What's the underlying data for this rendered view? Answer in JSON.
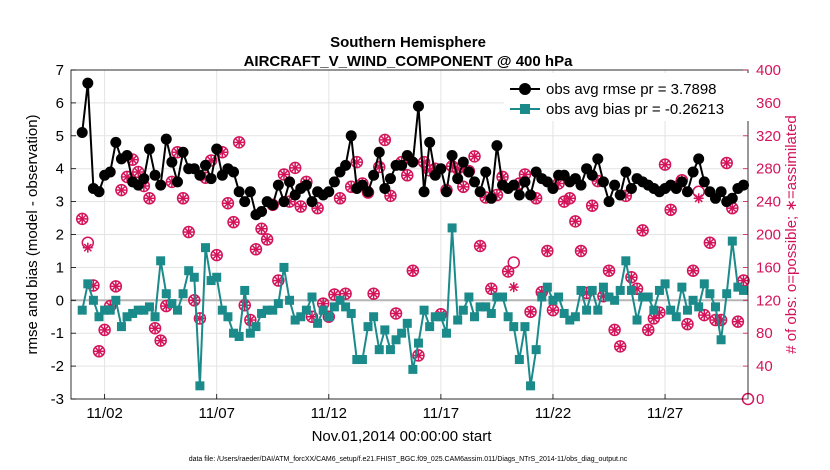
{
  "chart_data": {
    "type": "line",
    "title": "Southern Hemisphere",
    "subtitle": "AIRCRAFT_V_WIND_COMPONENT @ 400 hPa",
    "xlabel": "Nov.01,2014 00:00:00 start",
    "ylabel_left": "rmse and bias (model - observation)",
    "ylabel_right": "# of obs: o=possible; ∗=assimilated",
    "footnote": "data file: /Users/raeder/DAI/ATM_forcXX/CAM6_setup/f.e21.FHIST_BGC.f09_025.CAM6assim.011/Diags_NTrS_2014-11/obs_diag_output.nc",
    "xlim": [
      0.5,
      30.7
    ],
    "ylim_left": [
      -3,
      7
    ],
    "ylim_right": [
      0,
      400
    ],
    "x_ticks": [
      2,
      7,
      12,
      17,
      22,
      27
    ],
    "x_tick_labels": [
      "11/02",
      "11/07",
      "11/12",
      "11/17",
      "11/22",
      "11/27"
    ],
    "y_ticks_left": [
      -3,
      -2,
      -1,
      0,
      1,
      2,
      3,
      4,
      5,
      6,
      7
    ],
    "y_ticks_right": [
      0,
      40,
      80,
      120,
      160,
      200,
      240,
      280,
      320,
      360,
      400
    ],
    "grid": true,
    "legend_position": "top-right",
    "colors": {
      "rmse": "#000000",
      "bias": "#1b8a8a",
      "counts": "#d4145a",
      "zero_line": "#b5b5b5"
    },
    "x": [
      1,
      1.25,
      1.5,
      1.75,
      2,
      2.25,
      2.5,
      2.75,
      3,
      3.25,
      3.5,
      3.75,
      4,
      4.25,
      4.5,
      4.75,
      5,
      5.25,
      5.5,
      5.75,
      6,
      6.25,
      6.5,
      6.75,
      7,
      7.25,
      7.5,
      7.75,
      8,
      8.25,
      8.5,
      8.75,
      9,
      9.25,
      9.5,
      9.75,
      10,
      10.25,
      10.5,
      10.75,
      11,
      11.25,
      11.5,
      11.75,
      12,
      12.25,
      12.5,
      12.75,
      13,
      13.25,
      13.5,
      13.75,
      14,
      14.25,
      14.5,
      14.75,
      15,
      15.25,
      15.5,
      15.75,
      16,
      16.25,
      16.5,
      16.75,
      17,
      17.25,
      17.5,
      17.75,
      18,
      18.25,
      18.5,
      18.75,
      19,
      19.25,
      19.5,
      19.75,
      20,
      20.25,
      20.5,
      20.75,
      21,
      21.25,
      21.5,
      21.75,
      22,
      22.25,
      22.5,
      22.75,
      23,
      23.25,
      23.5,
      23.75,
      24,
      24.25,
      24.5,
      24.75,
      25,
      25.25,
      25.5,
      25.75,
      26,
      26.25,
      26.5,
      26.75,
      27,
      27.25,
      27.5,
      27.75,
      28,
      28.25,
      28.5,
      28.75,
      29,
      29.25,
      29.5,
      29.75,
      30,
      30.25,
      30.5
    ],
    "series": [
      {
        "name": "obs avg rmse pr = 3.7898",
        "axis": "left",
        "marker": "circle",
        "values": [
          5.1,
          6.6,
          3.4,
          3.3,
          3.8,
          3.9,
          4.8,
          4.3,
          4.4,
          3.6,
          3.5,
          3.7,
          4.6,
          3.8,
          3.5,
          4.9,
          4.2,
          3.6,
          4.5,
          4.0,
          4.0,
          3.8,
          4.1,
          3.7,
          4.6,
          3.8,
          4.0,
          3.9,
          3.3,
          3.0,
          3.3,
          2.6,
          2.7,
          3.0,
          2.9,
          3.5,
          3.0,
          3.6,
          3.2,
          3.4,
          3.5,
          3.0,
          3.3,
          3.2,
          3.3,
          3.6,
          3.9,
          4.1,
          5.0,
          3.4,
          3.5,
          3.3,
          3.8,
          4.5,
          3.4,
          3.7,
          4.1,
          4.1,
          4.4,
          4.2,
          5.9,
          3.3,
          4.8,
          3.8,
          4.0,
          3.3,
          4.4,
          3.7,
          4.2,
          3.9,
          3.6,
          3.3,
          3.9,
          3.1,
          4.7,
          3.5,
          3.4,
          3.5,
          3.2,
          3.6,
          3.2,
          3.9,
          3.7,
          3.6,
          3.4,
          3.8,
          3.8,
          3.6,
          3.7,
          3.5,
          4.0,
          3.8,
          4.3,
          3.6,
          3.0,
          3.5,
          3.2,
          3.9,
          3.4,
          3.7,
          3.6,
          3.5,
          3.4,
          3.3,
          3.4,
          3.5,
          3.4,
          3.6,
          3.3,
          3.9,
          4.3,
          3.6,
          3.3,
          3.1,
          3.3,
          3.0,
          3.1,
          3.4,
          3.5
        ]
      },
      {
        "name": "obs avg bias pr = -0.26213",
        "axis": "left",
        "marker": "square",
        "values": [
          -0.3,
          0.5,
          0.0,
          -0.5,
          -0.3,
          -0.3,
          0.0,
          -0.8,
          -0.5,
          -0.4,
          -0.3,
          -0.3,
          -0.2,
          -0.5,
          1.2,
          0.2,
          -0.1,
          -0.3,
          0.2,
          0.9,
          0.7,
          -2.6,
          1.6,
          0.6,
          0.7,
          -0.3,
          -0.5,
          -1.0,
          -1.1,
          0.3,
          -1.0,
          -0.8,
          -0.4,
          -0.3,
          -0.3,
          -0.1,
          1.0,
          0.0,
          -0.6,
          -0.5,
          -0.3,
          0.1,
          -0.7,
          -0.3,
          -0.5,
          -0.2,
          0.0,
          -0.2,
          -0.4,
          -1.8,
          -1.8,
          -0.8,
          -0.5,
          -1.5,
          -0.9,
          -1.5,
          -1.2,
          -1.0,
          -0.7,
          -2.1,
          -1.3,
          -0.3,
          -0.8,
          -0.5,
          -0.5,
          -1.0,
          2.2,
          -0.6,
          -0.3,
          0.1,
          -0.5,
          -0.2,
          -0.2,
          -0.4,
          0.1,
          0.1,
          -0.5,
          -0.8,
          -1.8,
          -0.8,
          -2.6,
          -1.5,
          0.1,
          0.4,
          0.0,
          0.1,
          -0.4,
          -0.6,
          -0.5,
          0.3,
          -0.3,
          0.3,
          -0.3,
          0.4,
          0.1,
          0.0,
          0.3,
          1.2,
          0.3,
          -0.6,
          0.1,
          0.1,
          -0.3,
          0.3,
          0.5,
          -0.3,
          -0.5,
          0.4,
          -0.3,
          0.0,
          -0.2,
          0.5,
          0.2,
          -0.2,
          -1.2,
          0.2,
          1.8,
          0.4,
          0.3
        ]
      },
      {
        "name": "obs possible",
        "axis": "right",
        "marker": "open-circle",
        "values": [
          219,
          190,
          138,
          58,
          84,
          113,
          137,
          254,
          270,
          291,
          276,
          259,
          244,
          86,
          71,
          113,
          264,
          300,
          244,
          203,
          120,
          98,
          269,
          290,
          175,
          300,
          238,
          215,
          312,
          114,
          96,
          182,
          207,
          194,
          236,
          144,
          273,
          240,
          281,
          234,
          264,
          100,
          232,
          116,
          100,
          127,
          244,
          128,
          258,
          288,
          262,
          251,
          128,
          282,
          315,
          247,
          104,
          288,
          272,
          156,
          53,
          288,
          278,
          280,
          103,
          254,
          283,
          280,
          258,
          277,
          295,
          186,
          245,
          134,
          248,
          270,
          155,
          166,
          262,
          273,
          106,
          244,
          130,
          180,
          108,
          262,
          240,
          244,
          216,
          180,
          129,
          235,
          265,
          125,
          156,
          84,
          64,
          247,
          148,
          134,
          205,
          84,
          98,
          105,
          285,
          230,
          258,
          266,
          91,
          156,
          252,
          102,
          190,
          96,
          96,
          287,
          232,
          94,
          144
        ]
      },
      {
        "name": "obs assimilated",
        "axis": "right",
        "marker": "asterisk",
        "values": [
          219,
          184,
          138,
          58,
          84,
          113,
          137,
          254,
          270,
          291,
          276,
          259,
          244,
          86,
          71,
          113,
          264,
          300,
          244,
          203,
          120,
          98,
          269,
          290,
          175,
          300,
          238,
          215,
          312,
          114,
          96,
          182,
          207,
          194,
          236,
          144,
          273,
          240,
          281,
          234,
          264,
          100,
          232,
          116,
          100,
          127,
          244,
          128,
          258,
          288,
          262,
          251,
          128,
          282,
          315,
          247,
          104,
          288,
          272,
          156,
          53,
          288,
          278,
          280,
          103,
          254,
          283,
          280,
          258,
          277,
          295,
          186,
          245,
          134,
          248,
          270,
          155,
          136,
          262,
          273,
          106,
          244,
          130,
          180,
          108,
          262,
          240,
          244,
          216,
          180,
          129,
          235,
          265,
          125,
          156,
          84,
          64,
          247,
          148,
          134,
          205,
          84,
          98,
          105,
          285,
          230,
          258,
          266,
          91,
          156,
          244,
          102,
          190,
          96,
          96,
          287,
          232,
          94,
          144
        ]
      }
    ]
  }
}
